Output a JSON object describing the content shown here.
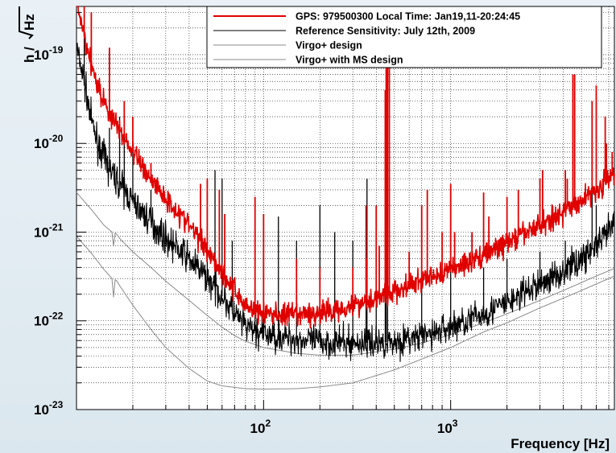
{
  "chart_data": {
    "type": "line",
    "title": "",
    "xlabel": "Frequency [Hz]",
    "ylabel": "h / √Hz",
    "ylabel_prefix": "h /",
    "ylabel_sqrt": "Hz",
    "x_scale": "log",
    "y_scale": "log",
    "xlim": [
      10,
      7500
    ],
    "ylim": [
      1e-23,
      3.5e-19
    ],
    "grid": true,
    "grid_style": "dotted",
    "legend_placement": "top-right",
    "x_ticks": [
      {
        "value": 100,
        "base": "10",
        "exp": "2"
      },
      {
        "value": 1000,
        "base": "10",
        "exp": "3"
      }
    ],
    "y_ticks": [
      {
        "value": 1e-19,
        "base": "10",
        "exp": "-19"
      },
      {
        "value": 1e-20,
        "base": "10",
        "exp": "-20"
      },
      {
        "value": 1e-21,
        "base": "10",
        "exp": "-21"
      },
      {
        "value": 1e-22,
        "base": "10",
        "exp": "-22"
      },
      {
        "value": 1e-23,
        "base": "10",
        "exp": "-23"
      }
    ],
    "series": [
      {
        "name": "GPS: 979500300 Local Time: Jan19,11-20:24:45",
        "color": "#e00000",
        "width": 1.6,
        "noise": 0.13,
        "points": [
          [
            10,
            4e-19
          ],
          [
            11,
            1.6e-19
          ],
          [
            12,
            8e-20
          ],
          [
            13,
            4.5e-20
          ],
          [
            14,
            3e-20
          ],
          [
            15,
            2.2e-20
          ],
          [
            17,
            1.4e-20
          ],
          [
            20,
            8e-21
          ],
          [
            25,
            4e-21
          ],
          [
            30,
            2.4e-21
          ],
          [
            40,
            1.2e-21
          ],
          [
            50,
            6.5e-22
          ],
          [
            60,
            3.5e-22
          ],
          [
            70,
            2.2e-22
          ],
          [
            80,
            1.5e-22
          ],
          [
            100,
            1.2e-22
          ],
          [
            150,
            1.15e-22
          ],
          [
            200,
            1.2e-22
          ],
          [
            300,
            1.5e-22
          ],
          [
            500,
            2.1e-22
          ],
          [
            700,
            2.8e-22
          ],
          [
            1000,
            3.8e-22
          ],
          [
            1500,
            5.5e-22
          ],
          [
            2000,
            7.5e-22
          ],
          [
            3000,
            1.2e-21
          ],
          [
            4000,
            1.7e-21
          ],
          [
            5000,
            2.3e-21
          ],
          [
            6000,
            3e-21
          ],
          [
            7500,
            4.5e-21
          ]
        ],
        "lines": [
          [
            11,
            4e-19
          ],
          [
            12,
            3e-19
          ],
          [
            15,
            1.2e-19
          ],
          [
            18,
            3e-20
          ],
          [
            20,
            2e-20
          ],
          [
            25,
            6e-21
          ],
          [
            46,
            3.5e-21
          ],
          [
            50,
            4e-21
          ],
          [
            58,
            3e-21
          ],
          [
            62,
            1.6e-21
          ],
          [
            90,
            2.5e-21
          ],
          [
            100,
            1.6e-21
          ],
          [
            150,
            5e-22
          ],
          [
            200,
            4e-22
          ],
          [
            300,
            4e-22
          ],
          [
            353,
            5e-22
          ],
          [
            357,
            2e-21
          ],
          [
            400,
            2e-21
          ],
          [
            415,
            7e-22
          ],
          [
            447,
            4e-20
          ],
          [
            452,
            1e-19
          ],
          [
            460,
            1e-19
          ],
          [
            470,
            1e-19
          ],
          [
            600,
            6e-22
          ],
          [
            700,
            2e-21
          ],
          [
            750,
            3e-21
          ],
          [
            900,
            1e-21
          ],
          [
            1000,
            3.5e-21
          ],
          [
            1050,
            1e-21
          ],
          [
            1300,
            1e-21
          ],
          [
            1500,
            2.8e-21
          ],
          [
            1600,
            1.5e-21
          ],
          [
            2000,
            2.5e-21
          ],
          [
            2300,
            3e-21
          ],
          [
            3000,
            4e-21
          ],
          [
            3100,
            5e-21
          ],
          [
            4100,
            5e-21
          ],
          [
            4200,
            4e-21
          ],
          [
            4500,
            6e-20
          ],
          [
            4600,
            6e-20
          ],
          [
            5700,
            3e-20
          ],
          [
            6000,
            4.5e-20
          ],
          [
            6700,
            2e-20
          ],
          [
            6800,
            1e-20
          ],
          [
            7300,
            8e-21
          ]
        ]
      },
      {
        "name": "Reference Sensitivity: July 12th, 2009",
        "color": "#000000",
        "width": 1.1,
        "noise": 0.17,
        "points": [
          [
            10,
            1.2e-19
          ],
          [
            11,
            5e-20
          ],
          [
            12,
            1.8e-20
          ],
          [
            13,
            1e-20
          ],
          [
            15,
            5e-21
          ],
          [
            17,
            3.5e-21
          ],
          [
            20,
            2.2e-21
          ],
          [
            25,
            1.3e-21
          ],
          [
            30,
            8.5e-22
          ],
          [
            40,
            5e-22
          ],
          [
            50,
            3e-22
          ],
          [
            60,
            1.9e-22
          ],
          [
            70,
            1.2e-22
          ],
          [
            80,
            8.5e-23
          ],
          [
            100,
            7e-23
          ],
          [
            150,
            6.2e-23
          ],
          [
            200,
            5.8e-23
          ],
          [
            300,
            5.6e-23
          ],
          [
            500,
            5.8e-23
          ],
          [
            700,
            6.6e-23
          ],
          [
            1000,
            8.5e-23
          ],
          [
            1500,
            1.2e-22
          ],
          [
            2000,
            1.6e-22
          ],
          [
            3000,
            2.6e-22
          ],
          [
            4000,
            3.6e-22
          ],
          [
            5000,
            5e-22
          ],
          [
            6000,
            7e-22
          ],
          [
            7000,
            1e-21
          ],
          [
            7500,
            1.3e-21
          ]
        ],
        "lines": [
          [
            11,
            2e-19
          ],
          [
            12,
            2.5e-20
          ],
          [
            15,
            1.5e-20
          ],
          [
            17,
            2e-20
          ],
          [
            18,
            1.5e-20
          ],
          [
            20,
            8e-21
          ],
          [
            25,
            3e-21
          ],
          [
            50,
            9e-22
          ],
          [
            55,
            5e-21
          ],
          [
            60,
            4e-21
          ],
          [
            62,
            7e-22
          ],
          [
            68,
            8e-22
          ],
          [
            90,
            1.6e-21
          ],
          [
            100,
            2.5e-22
          ],
          [
            120,
            1.5e-21
          ],
          [
            150,
            8e-22
          ],
          [
            200,
            2e-21
          ],
          [
            240,
            1e-21
          ],
          [
            300,
            8e-22
          ],
          [
            353,
            2e-21
          ],
          [
            357,
            4e-21
          ],
          [
            400,
            6e-22
          ],
          [
            447,
            3e-21
          ],
          [
            452,
            6e-21
          ],
          [
            460,
            1e-21
          ],
          [
            700,
            3e-22
          ],
          [
            1000,
            1.1e-21
          ],
          [
            1500,
            4e-22
          ],
          [
            2000,
            5e-22
          ],
          [
            3000,
            6e-22
          ],
          [
            4100,
            8e-22
          ],
          [
            4500,
            6e-22
          ],
          [
            5700,
            3e-21
          ],
          [
            6000,
            2e-21
          ]
        ]
      },
      {
        "name": "Virgo+ design",
        "color": "#8a8a8a",
        "width": 1,
        "noise": 0,
        "points": [
          [
            10,
            2.8e-21
          ],
          [
            12,
            1.8e-21
          ],
          [
            14,
            1.2e-21
          ],
          [
            15.5,
            1e-21
          ],
          [
            15.9,
            6e-22
          ],
          [
            16.1,
            1e-21
          ],
          [
            17,
            8.5e-22
          ],
          [
            20,
            6e-22
          ],
          [
            25,
            4e-22
          ],
          [
            30,
            2.8e-22
          ],
          [
            40,
            1.7e-22
          ],
          [
            50,
            1.15e-22
          ],
          [
            60,
            8.5e-23
          ],
          [
            70,
            6.8e-23
          ],
          [
            80,
            5.9e-23
          ],
          [
            100,
            5e-23
          ],
          [
            150,
            4.3e-23
          ],
          [
            200,
            4.1e-23
          ],
          [
            300,
            4.1e-23
          ],
          [
            500,
            4.8e-23
          ],
          [
            700,
            5.6e-23
          ],
          [
            1000,
            7e-23
          ],
          [
            1500,
            9.5e-23
          ],
          [
            2000,
            1.2e-22
          ],
          [
            3000,
            1.7e-22
          ],
          [
            4000,
            2.2e-22
          ],
          [
            5000,
            2.7e-22
          ],
          [
            6000,
            3.2e-22
          ],
          [
            7500,
            3.9e-22
          ]
        ],
        "lines": []
      },
      {
        "name": "Virgo+ with MS design",
        "color": "#8a8a8a",
        "width": 1,
        "noise": 0,
        "points": [
          [
            10,
            9e-22
          ],
          [
            12,
            5.8e-22
          ],
          [
            14,
            3.8e-22
          ],
          [
            15.5,
            3e-22
          ],
          [
            15.9,
            1.5e-22
          ],
          [
            16.1,
            3e-22
          ],
          [
            17,
            2.5e-22
          ],
          [
            20,
            1.5e-22
          ],
          [
            25,
            8e-23
          ],
          [
            30,
            5e-23
          ],
          [
            40,
            2.9e-23
          ],
          [
            50,
            2.1e-23
          ],
          [
            60,
            1.85e-23
          ],
          [
            80,
            1.72e-23
          ],
          [
            100,
            1.7e-23
          ],
          [
            150,
            1.72e-23
          ],
          [
            200,
            1.8e-23
          ],
          [
            300,
            2e-23
          ],
          [
            500,
            2.8e-23
          ],
          [
            700,
            3.7e-23
          ],
          [
            1000,
            5e-23
          ],
          [
            1500,
            7.5e-23
          ],
          [
            2000,
            9.5e-23
          ],
          [
            3000,
            1.4e-22
          ],
          [
            4000,
            1.8e-22
          ],
          [
            5000,
            2.2e-22
          ],
          [
            6000,
            2.6e-22
          ],
          [
            7500,
            3.2e-22
          ]
        ],
        "lines": []
      }
    ]
  }
}
